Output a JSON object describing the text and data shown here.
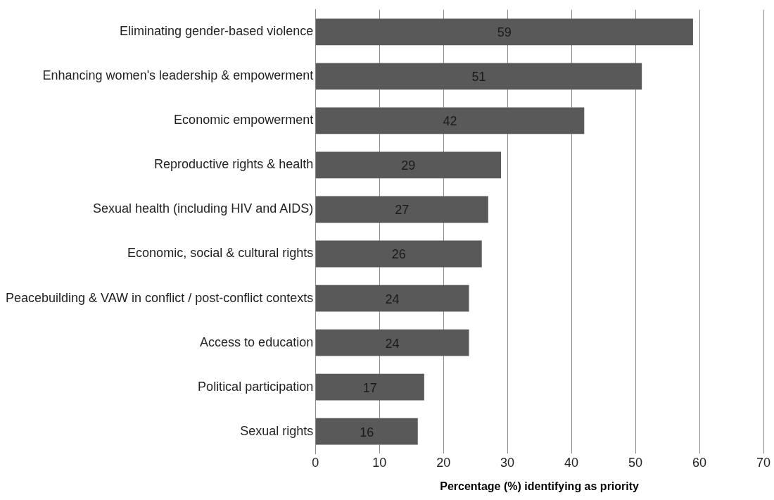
{
  "chart_data": {
    "type": "bar",
    "orientation": "horizontal",
    "xlabel": "Percentage (%) identifying as priority",
    "categories": [
      "Eliminating gender-based violence",
      "Enhancing women's leadership & empowerment",
      "Economic empowerment",
      "Reproductive rights & health",
      "Sexual health (including HIV and AIDS)",
      "Economic, social & cultural rights",
      "Peacebuilding & VAW in conflict / post-conflict contexts",
      "Access to education",
      "Political participation",
      "Sexual rights"
    ],
    "values": [
      59,
      51,
      42,
      29,
      27,
      26,
      24,
      24,
      17,
      16
    ],
    "color": "#595959",
    "xlim": [
      0,
      70
    ],
    "xticks": [
      0,
      10,
      20,
      30,
      40,
      50,
      60,
      70
    ],
    "grid": "x",
    "data_labels": true,
    "legend": false
  }
}
